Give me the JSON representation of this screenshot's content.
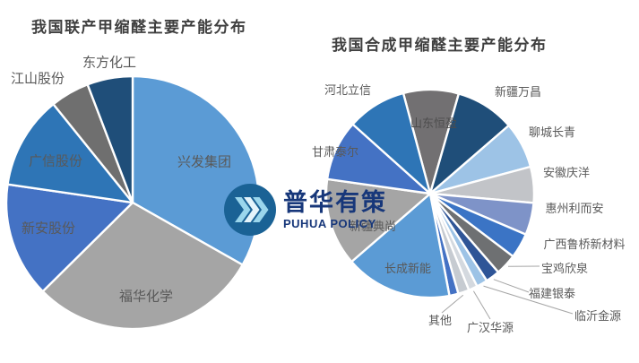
{
  "watermark": {
    "name": "普华有策",
    "name_en": "PUHUA POLICY",
    "brand_navy": "#17377a",
    "logo_circle_color": "#1a6295",
    "logo_chevron_color": "#9ad6ec"
  },
  "chart_data": [
    {
      "type": "pie",
      "title": "我国联产甲缩醛主要产能分布",
      "legend_position": "none",
      "label_style": "category names on/near slices, no values shown",
      "slices": [
        {
          "label": "兴发集团",
          "share_pct": 33.2,
          "color": "#5B9BD5"
        },
        {
          "label": "福华化学",
          "share_pct": 29.4,
          "color": "#A5A5A5"
        },
        {
          "label": "新安股份",
          "share_pct": 14.7,
          "color": "#4472C4"
        },
        {
          "label": "广信股份",
          "share_pct": 11.9,
          "color": "#2E75B6"
        },
        {
          "label": "江山股份",
          "share_pct": 5.0,
          "color": "#6F6F6F"
        },
        {
          "label": "东方化工",
          "share_pct": 5.8,
          "color": "#1F4E79"
        }
      ]
    },
    {
      "type": "pie",
      "title": "我国合成甲缩醛主要产能分布",
      "legend_position": "none",
      "label_style": "category names outside with leader lines for thin slices, no values shown",
      "slices": [
        {
          "label": "山东恒盈",
          "share_pct": 8.6,
          "color": "#727072"
        },
        {
          "label": "新疆万昌",
          "share_pct": 9.2,
          "color": "#1F4E79"
        },
        {
          "label": "聊城长青",
          "share_pct": 7.2,
          "color": "#9DC3E6"
        },
        {
          "label": "安徽庆洋",
          "share_pct": 5.6,
          "color": "#C2C4C8"
        },
        {
          "label": "惠州利而安",
          "share_pct": 5.0,
          "color": "#7E93C8"
        },
        {
          "label": "广西鲁桥新材料",
          "share_pct": 3.9,
          "color": "#3B74C5"
        },
        {
          "label": "宝鸡欣泉",
          "share_pct": 3.3,
          "color": "#6E7072"
        },
        {
          "label": "福建银泰",
          "share_pct": 2.2,
          "color": "#2F5597"
        },
        {
          "label": "临沂金源",
          "share_pct": 1.7,
          "color": "#9DC3E6"
        },
        {
          "label": "广汉华源",
          "share_pct": 1.4,
          "color": "#D4D9DF"
        },
        {
          "label": "其他",
          "share_pct": 1.7,
          "color": "#C6CBD1"
        },
        {
          "label": "",
          "share_pct": 1.4,
          "color": "#4472C4"
        },
        {
          "label": "长成新能",
          "share_pct": 16.6,
          "color": "#5B9BD5"
        },
        {
          "label": "新疆典尚",
          "share_pct": 13.6,
          "color": "#A5A5A5"
        },
        {
          "label": "甘肃泰尔",
          "share_pct": 9.4,
          "color": "#4472C4"
        },
        {
          "label": "河北立信",
          "share_pct": 9.2,
          "color": "#2E75B6"
        }
      ]
    }
  ]
}
